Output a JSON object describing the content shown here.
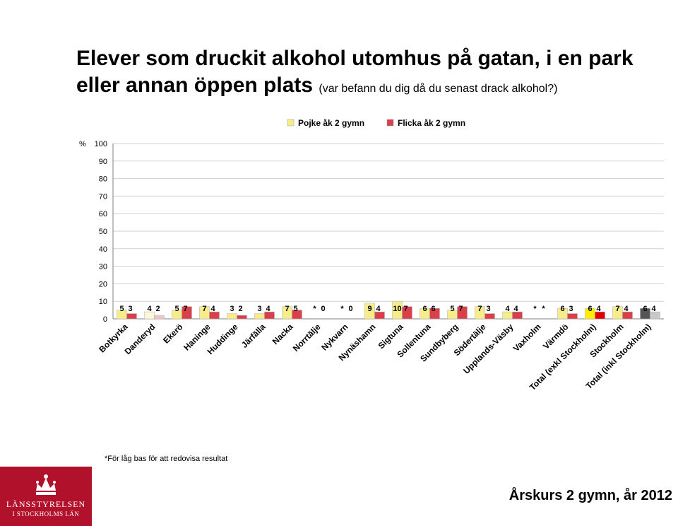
{
  "slide": {
    "title": "Elever som druckit alkohol utomhus på gatan, i en park eller annan öppen plats",
    "subtitle": "(var befann du dig då du senast drack alkohol?)",
    "footnote": "*För låg bas för att redovisa resultat",
    "footer_right": "Årskurs 2 gymn, år 2012",
    "logo_line1": "LÄNSSTYRELSEN",
    "logo_line2": "I STOCKHOLMS LÄN"
  },
  "chart_data": {
    "type": "bar",
    "ylabel": "%",
    "ylim": [
      0,
      100
    ],
    "yticks": [
      0,
      10,
      20,
      30,
      40,
      50,
      60,
      70,
      80,
      90,
      100
    ],
    "grid": true,
    "legend_position": "top",
    "categories": [
      "Botkyrka",
      "Danderyd",
      "Ekerö",
      "Haninge",
      "Huddinge",
      "Järfälla",
      "Nacka",
      "Norrtälje",
      "Nykvarn",
      "Nynäshamn",
      "Sigtuna",
      "Sollentuna",
      "Sundbyberg",
      "Södertälje",
      "Upplands-Väsby",
      "Vaxholm",
      "Värmdö",
      "Total (exkl Stockholm)",
      "Stockholm",
      "Total (inkl Stockholm)"
    ],
    "series": [
      {
        "name": "Pojke åk 2 gymn",
        "color": "#f6ec8a",
        "values": [
          5,
          4,
          5,
          7,
          3,
          3,
          7,
          null,
          null,
          9,
          10,
          6,
          5,
          7,
          4,
          null,
          6,
          6,
          7,
          6
        ],
        "labels": [
          "5",
          "4",
          "5",
          "7",
          "3",
          "3",
          "7",
          "*",
          "*",
          "9",
          "10",
          "6",
          "5",
          "7",
          "4",
          "*",
          "6",
          "6",
          "7",
          "6"
        ]
      },
      {
        "name": "Flicka åk 2 gymn",
        "color": "#d9404a",
        "values": [
          3,
          2,
          7,
          4,
          2,
          4,
          5,
          0,
          0,
          4,
          7,
          6,
          7,
          3,
          4,
          null,
          3,
          4,
          4,
          4
        ],
        "labels": [
          "3",
          "2",
          "7",
          "4",
          "2",
          "4",
          "5",
          "0",
          "0",
          "4",
          "7",
          "6",
          "7",
          "3",
          "4",
          "*",
          "3",
          "4",
          "4",
          "4"
        ]
      }
    ],
    "highlight_colors": {
      "Danderyd": [
        "#fbf7d8",
        "#f2c4c8"
      ],
      "Total (exkl Stockholm)": [
        "#ffee00",
        "#e00000"
      ],
      "Total (inkl Stockholm)": [
        "#555555",
        "#c8c8c8"
      ]
    }
  }
}
